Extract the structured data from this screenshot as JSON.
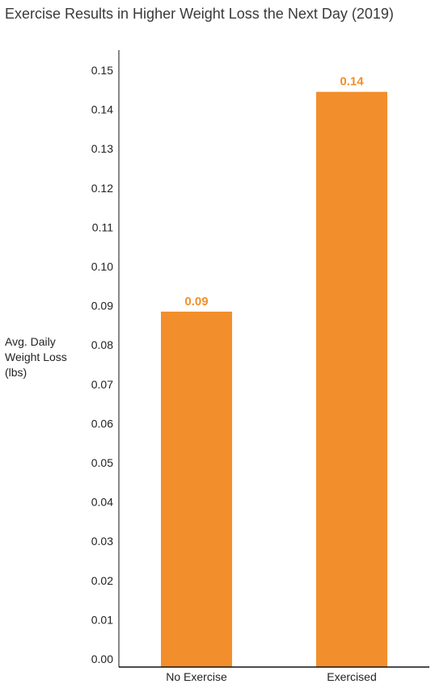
{
  "chart_data": {
    "type": "bar",
    "title": "Exercise Results in Higher Weight Loss the Next Day (2019)",
    "xlabel": "",
    "ylabel": "Avg. Daily Weight Loss (lbs)",
    "categories": [
      "No Exercise",
      "Exercised"
    ],
    "values": [
      0.0885,
      0.1445
    ],
    "data_labels": [
      "0.09",
      "0.14"
    ],
    "ylim": [
      0,
      0.155
    ],
    "yticks": [
      "0.00",
      "0.01",
      "0.02",
      "0.03",
      "0.04",
      "0.05",
      "0.06",
      "0.07",
      "0.08",
      "0.09",
      "0.10",
      "0.11",
      "0.12",
      "0.13",
      "0.14",
      "0.15"
    ],
    "bar_color": "#f28f2c",
    "label_color": "#f28f2c",
    "grid": false,
    "legend": "none"
  }
}
